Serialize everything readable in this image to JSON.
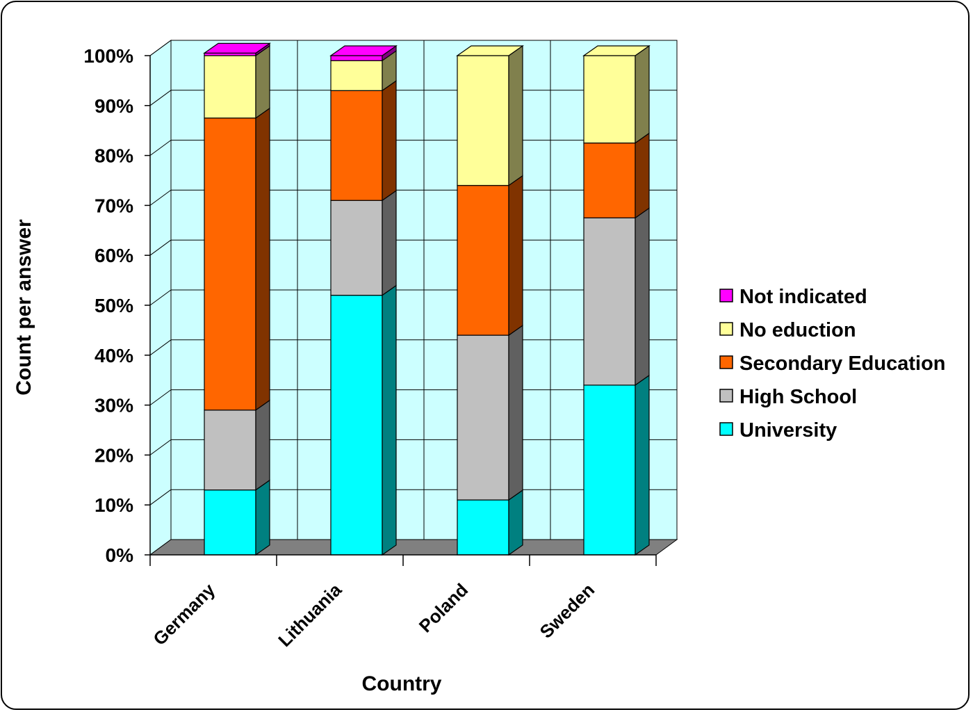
{
  "chart_data": {
    "type": "bar",
    "stacked": true,
    "percent_stacked": true,
    "three_d": true,
    "xlabel": "Country",
    "ylabel": "Count per answer",
    "categories": [
      "Germany",
      "Lithuania",
      "Poland",
      "Sweden"
    ],
    "y_ticks": [
      "0%",
      "10%",
      "20%",
      "30%",
      "40%",
      "50%",
      "60%",
      "70%",
      "80%",
      "90%",
      "100%"
    ],
    "ylim": [
      0,
      100
    ],
    "grid": true,
    "legend_position": "right",
    "series": [
      {
        "name": "University",
        "color": "#00FFFF",
        "side_color": "#008080",
        "values": [
          13,
          52,
          11,
          34
        ]
      },
      {
        "name": "High School",
        "color": "#C0C0C0",
        "side_color": "#606060",
        "values": [
          16,
          19,
          33,
          33.5
        ]
      },
      {
        "name": "Secondary Education",
        "color": "#FF6600",
        "side_color": "#803300",
        "values": [
          58.5,
          22,
          30,
          15
        ]
      },
      {
        "name": "No eduction",
        "color": "#FFFF99",
        "side_color": "#80804D",
        "values": [
          12.5,
          6,
          26,
          17.5
        ]
      },
      {
        "name": "Not indicated",
        "color": "#FF00FF",
        "side_color": "#800080",
        "values": [
          0.5,
          1,
          0,
          0
        ]
      }
    ],
    "plot_background": "#CCFFFF",
    "floor_color": "#808080"
  }
}
